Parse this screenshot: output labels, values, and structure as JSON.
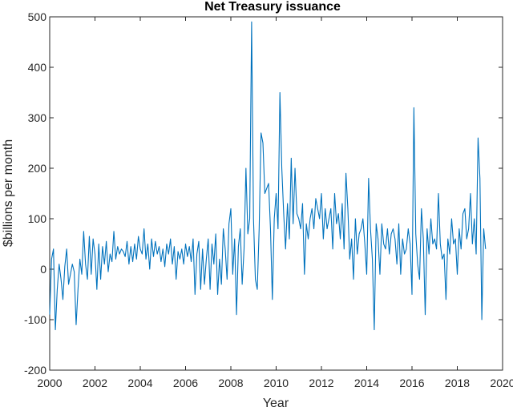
{
  "chart_data": {
    "type": "line",
    "title": "Net Treasury issuance",
    "xlabel": "Year",
    "ylabel": "$billions per month",
    "xlim": [
      2000,
      2020
    ],
    "ylim": [
      -200,
      500
    ],
    "xticks": [
      "2000",
      "2002",
      "2004",
      "2006",
      "2008",
      "2010",
      "2012",
      "2014",
      "2016",
      "2018",
      "2020"
    ],
    "yticks": [
      "-200",
      "-100",
      "0",
      "100",
      "200",
      "300",
      "400",
      "500"
    ],
    "grid": false,
    "legend": "none",
    "colors": {
      "line": "#0072bd",
      "axes": "#262626"
    },
    "series": [
      {
        "x_start": 2000.0,
        "x_step_months": 1,
        "values": [
          -90,
          20,
          40,
          -120,
          -40,
          10,
          -20,
          -60,
          5,
          40,
          -30,
          -10,
          10,
          -5,
          -110,
          -40,
          20,
          -10,
          75,
          10,
          -20,
          65,
          -10,
          60,
          30,
          -40,
          50,
          -20,
          45,
          10,
          55,
          -5,
          30,
          15,
          75,
          20,
          45,
          30,
          40,
          35,
          25,
          55,
          10,
          45,
          15,
          50,
          20,
          65,
          40,
          30,
          80,
          20,
          50,
          0,
          60,
          25,
          55,
          30,
          45,
          15,
          40,
          5,
          50,
          30,
          60,
          10,
          45,
          -20,
          35,
          20,
          40,
          10,
          50,
          25,
          45,
          15,
          60,
          -50,
          30,
          55,
          -40,
          40,
          -30,
          20,
          60,
          -40,
          50,
          10,
          70,
          -50,
          20,
          -30,
          80,
          40,
          -20,
          90,
          120,
          -10,
          60,
          -90,
          45,
          80,
          -30,
          40,
          200,
          70,
          100,
          490,
          100,
          -20,
          -40,
          80,
          270,
          250,
          150,
          160,
          170,
          80,
          -60,
          100,
          150,
          80,
          350,
          200,
          110,
          40,
          130,
          60,
          220,
          90,
          200,
          110,
          100,
          80,
          130,
          -10,
          90,
          60,
          100,
          120,
          80,
          140,
          120,
          100,
          150,
          60,
          120,
          80,
          100,
          120,
          40,
          150,
          90,
          110,
          60,
          130,
          40,
          190,
          120,
          20,
          60,
          -20,
          100,
          30,
          70,
          80,
          100,
          50,
          -10,
          180,
          80,
          20,
          -120,
          90,
          60,
          -10,
          90,
          50,
          40,
          80,
          30,
          70,
          80,
          60,
          10,
          90,
          -10,
          60,
          30,
          40,
          80,
          50,
          -50,
          320,
          70,
          10,
          -20,
          120,
          60,
          -90,
          80,
          30,
          100,
          50,
          60,
          40,
          150,
          50,
          20,
          30,
          -60,
          60,
          30,
          100,
          50,
          60,
          -10,
          80,
          40,
          110,
          120,
          60,
          80,
          150,
          50,
          100,
          30,
          260,
          180,
          -100,
          80,
          40
        ]
      }
    ]
  }
}
